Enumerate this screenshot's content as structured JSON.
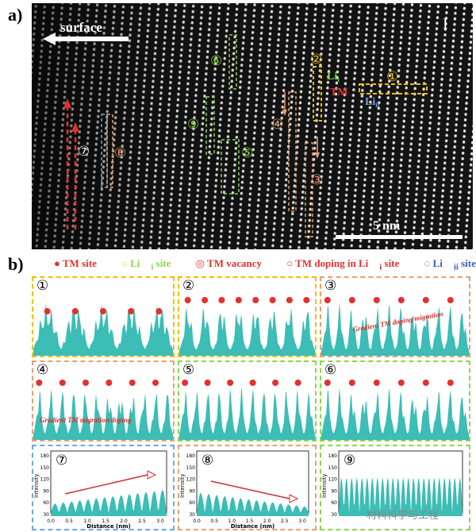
{
  "panel_a": {
    "label": "a)",
    "surface": "surface",
    "corner_mark": "I",
    "scale_bar": "5 nm",
    "markers": [
      "①",
      "②",
      "③",
      "④",
      "⑤",
      "⑥",
      "⑦",
      "⑧",
      "⑨"
    ],
    "li_i": "Li",
    "li_i_sub": "i",
    "tm": "TM",
    "li_ii": "Li",
    "li_ii_sub": "ii"
  },
  "panel_b": {
    "label": "b)",
    "legend": {
      "tm_site": "TM site",
      "li_i_site": "Li",
      "li_i_site_sub": "i",
      "li_i_site_suffix": " site",
      "tm_vacancy": "TM vacancy",
      "tm_doping": "TM doping in Li",
      "tm_doping_sub": "i",
      "tm_doping_suffix": " site",
      "li_ii_site": "Li",
      "li_ii_site_sub": "ii",
      "li_ii_site_suffix": " site"
    },
    "cells": [
      {
        "num": "①",
        "annotation": ""
      },
      {
        "num": "②",
        "annotation": ""
      },
      {
        "num": "③",
        "annotation": "Gradient TM doping/migration"
      },
      {
        "num": "④",
        "annotation": "Gradient TM migration/doping"
      },
      {
        "num": "⑤",
        "annotation": ""
      },
      {
        "num": "⑥",
        "annotation": ""
      },
      {
        "num": "⑦",
        "annotation": ""
      },
      {
        "num": "⑧",
        "annotation": ""
      },
      {
        "num": "⑨",
        "annotation": ""
      }
    ],
    "plot_axis": {
      "ylabel": "Intensity",
      "xlabel": "Distance (nm)",
      "yticks": [
        "30",
        "60",
        "90",
        "120",
        "150",
        "180"
      ],
      "xticks_78": [
        "0.0",
        "0.5",
        "1.0",
        "1.5",
        "2.0",
        "2.5",
        "3.0"
      ],
      "xticks_8": [
        "0.0",
        "0.5",
        "1.0",
        "1.5",
        "2.0",
        "2.5",
        "3.0"
      ]
    },
    "watermark": "材料科学与工程"
  }
}
